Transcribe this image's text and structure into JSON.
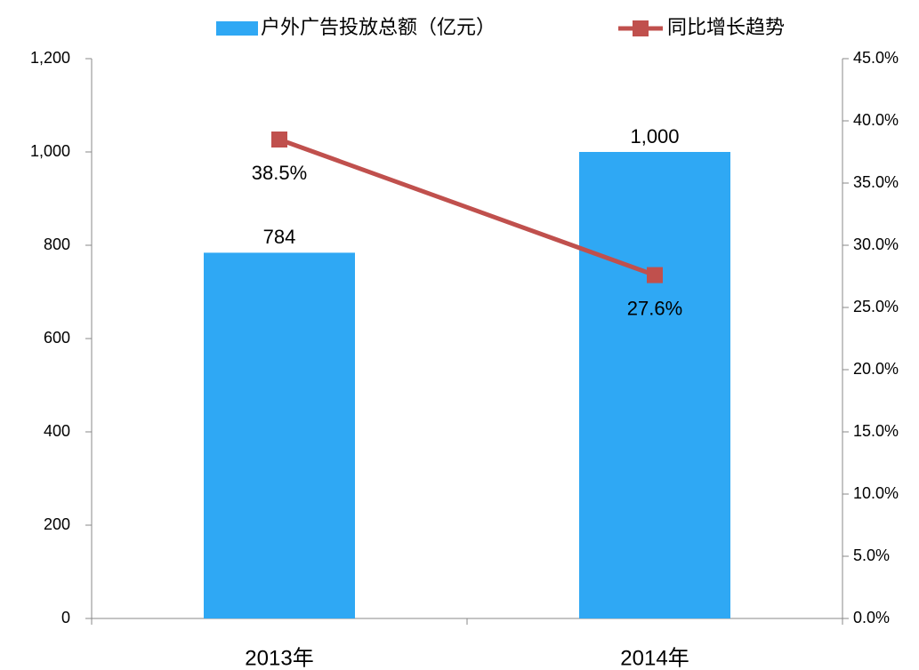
{
  "chart_data": {
    "type": "bar",
    "categories": [
      "2013年",
      "2014年"
    ],
    "series": [
      {
        "name": "户外广告投放总额（亿元）",
        "type": "bar",
        "color": "#2fa8f4",
        "values": [
          784,
          1000
        ],
        "value_labels": [
          "784",
          "1,000"
        ]
      },
      {
        "name": "同比增长趋势",
        "type": "line",
        "axis": "y2",
        "color": "#c0504d",
        "values": [
          38.5,
          27.6
        ],
        "value_labels": [
          "38.5%",
          "27.6%"
        ]
      }
    ],
    "ylim": [
      0,
      1200
    ],
    "yticks": [
      0,
      200,
      400,
      600,
      800,
      {
        "value": 1000,
        "label": "1,000"
      },
      {
        "value": 1200,
        "label": "1,200"
      }
    ],
    "y2lim": [
      0,
      45
    ],
    "y2ticks": [
      {
        "value": 0,
        "label": "0.0%"
      },
      {
        "value": 5,
        "label": "5.0%"
      },
      {
        "value": 10,
        "label": "10.0%"
      },
      {
        "value": 15,
        "label": "15.0%"
      },
      {
        "value": 20,
        "label": "20.0%"
      },
      {
        "value": 25,
        "label": "25.0%"
      },
      {
        "value": 30,
        "label": "30.0%"
      },
      {
        "value": 35,
        "label": "35.0%"
      },
      {
        "value": 40,
        "label": "40.0%"
      },
      {
        "value": 45,
        "label": "45.0%"
      }
    ],
    "legend": "top"
  }
}
